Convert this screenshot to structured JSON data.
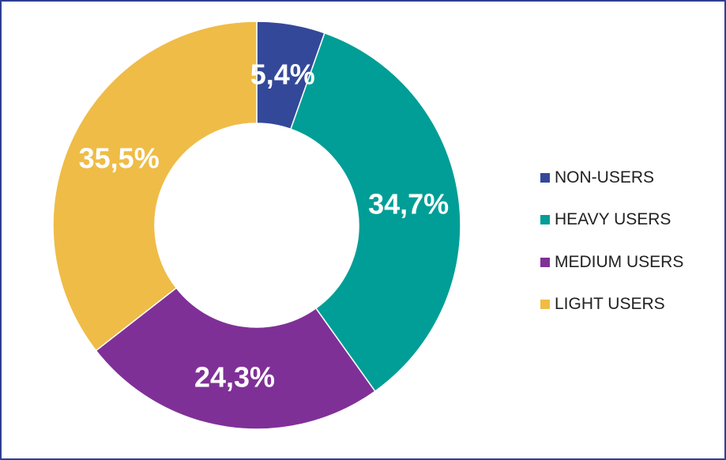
{
  "chart_data": {
    "type": "pie",
    "donut": true,
    "categories": [
      "NON-USERS",
      "HEAVY USERS",
      "MEDIUM USERS",
      "LIGHT USERS"
    ],
    "values": [
      5.4,
      34.7,
      24.3,
      35.5
    ],
    "labels": [
      "5,4%",
      "34,7%",
      "24,3%",
      "35,5%"
    ],
    "colors": [
      "#34489A",
      "#009E96",
      "#7F3097",
      "#EFBC47"
    ],
    "label_color": "#ffffff",
    "legend_position": "right",
    "start_angle": "top",
    "direction": "clockwise"
  },
  "frame": {
    "border_color": "#2E3F93"
  }
}
